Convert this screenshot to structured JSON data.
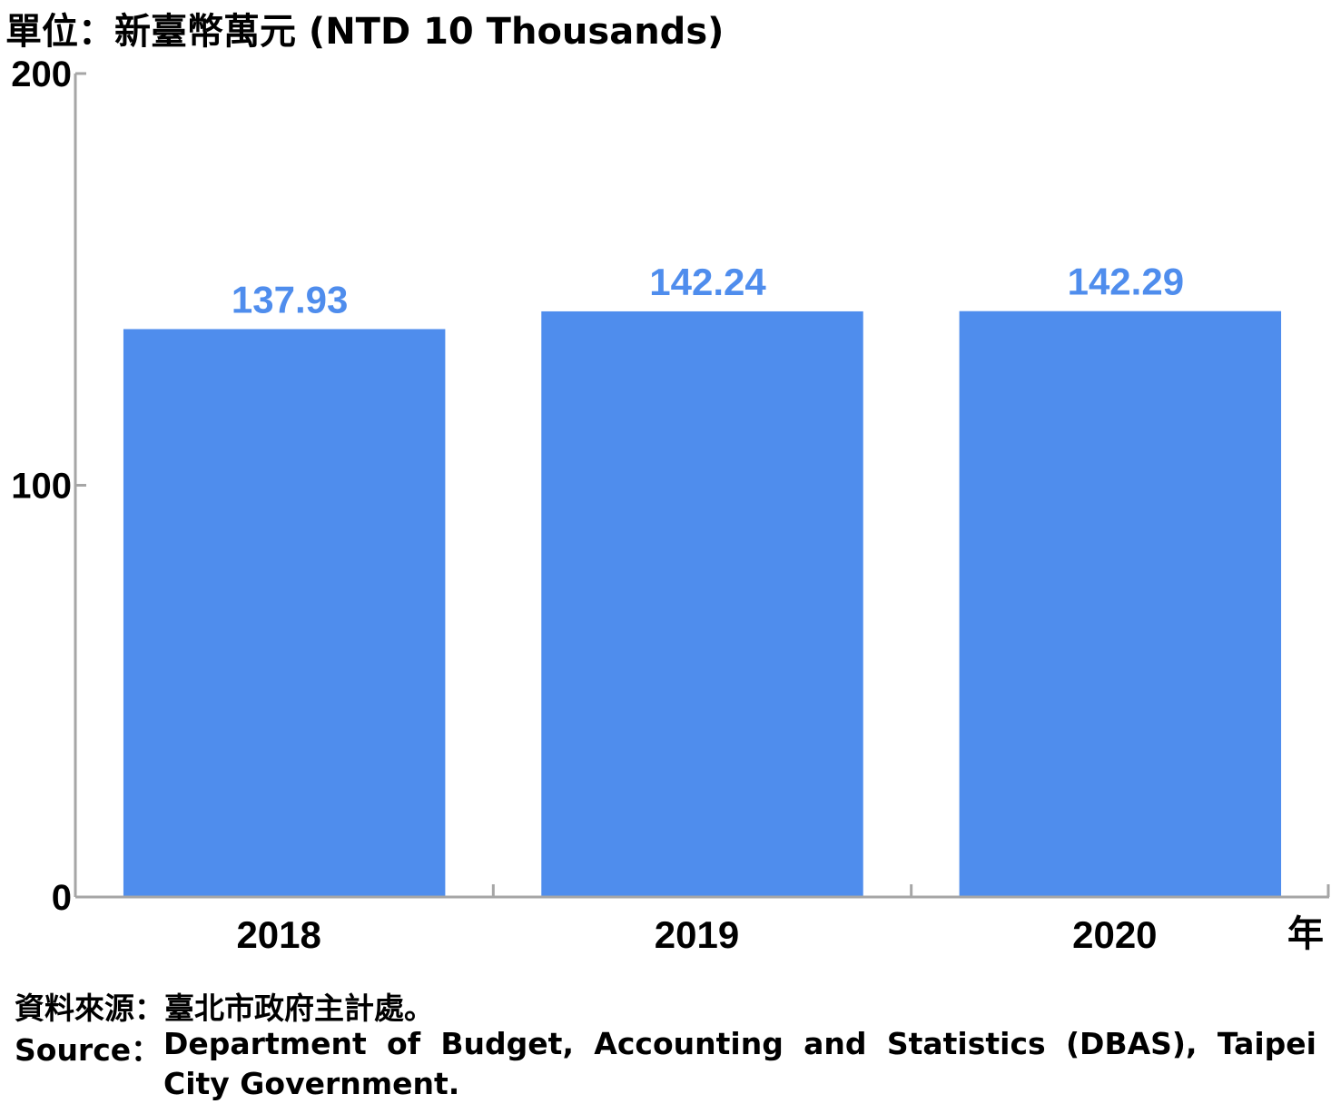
{
  "unit_label": "單位：新臺幣萬元 (NTD 10 Thousands)",
  "source_zh": "資料來源：臺北市政府主計處。",
  "source_en_label": "Source：",
  "source_en_text": "Department of Budget, Accounting and Statistics (DBAS), Taipei City Government.",
  "x_unit": "年",
  "colors": {
    "bar": "#4f8ded",
    "value_label": "#4f8ded",
    "axis": "#a6a6a6",
    "text": "#000000"
  },
  "chart_data": {
    "type": "bar",
    "categories": [
      "2018",
      "2019",
      "2020"
    ],
    "values": [
      137.93,
      142.24,
      142.29
    ],
    "value_labels": [
      "137.93",
      "142.24",
      "142.29"
    ],
    "yticks": [
      0,
      100,
      200
    ],
    "ylim": [
      0,
      200
    ],
    "xlabel": "年",
    "ylabel": "單位：新臺幣萬元 (NTD 10 Thousands)",
    "title": "",
    "grid": false,
    "legend": "none"
  }
}
